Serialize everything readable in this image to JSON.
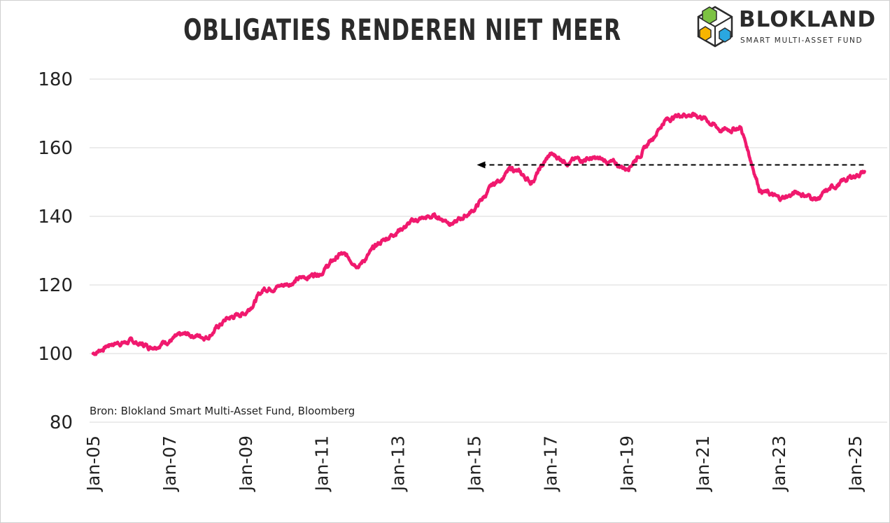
{
  "title": "OBLIGATIES RENDEREN NIET MEER",
  "logo": {
    "name": "BLOKLAND",
    "tagline": "SMART MULTI-ASSET FUND",
    "icon": "cube-logo-icon"
  },
  "source": "Bron: Blokland Smart Multi-Asset Fund, Bloomberg",
  "colors": {
    "line": "#f0196e",
    "grid": "#d9d9d9",
    "reference": "#000000",
    "text": "#222222"
  },
  "chart_data": {
    "type": "line",
    "ylim": [
      80,
      180
    ],
    "yticks": [
      "80",
      "100",
      "120",
      "140",
      "160",
      "180"
    ],
    "xticks": [
      "Jan-05",
      "Jan-07",
      "Jan-09",
      "Jan-11",
      "Jan-13",
      "Jan-15",
      "Jan-17",
      "Jan-19",
      "Jan-21",
      "Jan-23",
      "Jan-25"
    ],
    "grid": true,
    "x": [
      "2005-01",
      "2005-07",
      "2006-01",
      "2006-07",
      "2007-01",
      "2007-07",
      "2008-01",
      "2008-07",
      "2009-01",
      "2009-07",
      "2010-01",
      "2010-07",
      "2011-01",
      "2011-07",
      "2012-01",
      "2012-07",
      "2013-01",
      "2013-07",
      "2014-01",
      "2014-07",
      "2015-01",
      "2015-07",
      "2016-01",
      "2016-07",
      "2017-01",
      "2017-07",
      "2018-01",
      "2018-07",
      "2019-01",
      "2019-07",
      "2020-01",
      "2020-07",
      "2021-01",
      "2021-07",
      "2022-01",
      "2022-07",
      "2023-01",
      "2023-07",
      "2024-01",
      "2024-07",
      "2025-01",
      "2025-04"
    ],
    "series": [
      {
        "values": [
          100,
          103,
          103.5,
          102,
          104,
          105.5,
          105,
          110,
          112,
          119,
          120,
          122,
          124,
          129,
          126,
          132,
          136,
          139,
          140,
          138,
          142,
          149,
          154,
          150,
          158,
          156,
          157,
          156,
          154,
          160,
          168,
          170,
          169,
          165,
          166,
          148,
          145,
          147,
          145,
          149,
          152,
          153
        ]
      }
    ],
    "reference_line": {
      "value": 155,
      "from": "2015-01",
      "to": "2025-04",
      "style": "dashed",
      "arrow": "start"
    }
  }
}
